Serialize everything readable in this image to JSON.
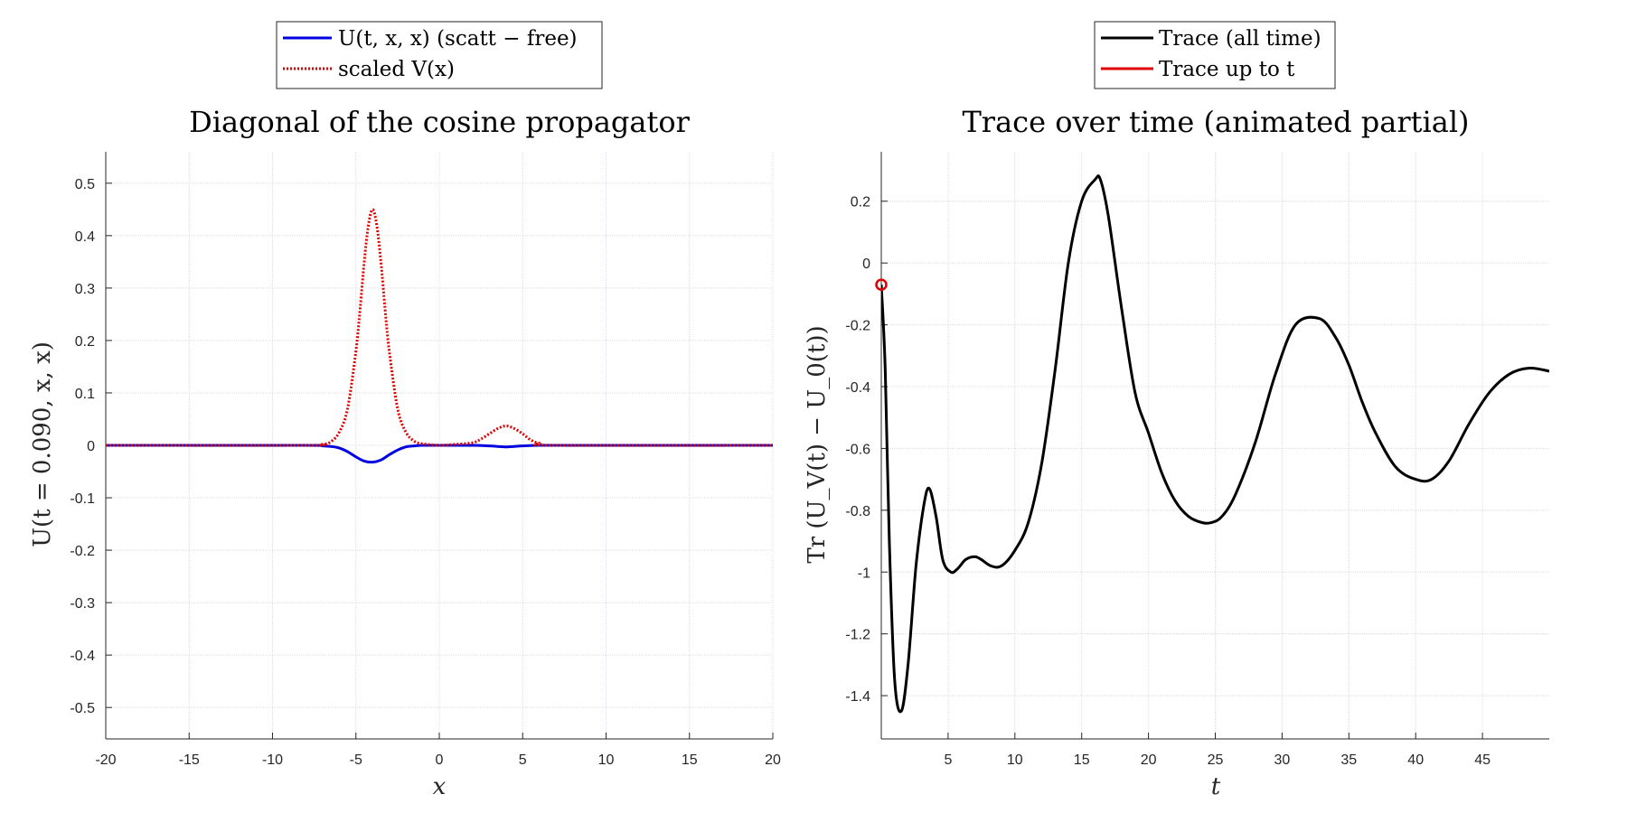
{
  "chart_data": [
    {
      "type": "line",
      "title": "Diagonal of the cosine propagator",
      "xlabel": "x",
      "ylabel": "U(t = 0.090, x, x)",
      "xlim": [
        -20,
        20
      ],
      "ylim": [
        -0.56,
        0.56
      ],
      "xticks": [
        -20,
        -15,
        -10,
        -5,
        0,
        5,
        10,
        15,
        20
      ],
      "yticks": [
        -0.5,
        -0.4,
        -0.3,
        -0.2,
        -0.1,
        0,
        0.1,
        0.2,
        0.3,
        0.4,
        0.5
      ],
      "grid": true,
      "legend_position": "top (outside, above title)",
      "series": [
        {
          "name": "U(t, x, x) (scatt − free)",
          "color": "#0000e0",
          "style": "solid",
          "x": [
            -20,
            -8,
            -7,
            -6.5,
            -6,
            -5.5,
            -5,
            -4.5,
            -4,
            -3.5,
            -3,
            -2.5,
            -2,
            -1.5,
            -1,
            0,
            2,
            3,
            3.5,
            4,
            4.5,
            5,
            6,
            8,
            20
          ],
          "y": [
            0,
            0,
            -0.001,
            -0.002,
            -0.005,
            -0.012,
            -0.022,
            -0.03,
            -0.032,
            -0.028,
            -0.018,
            -0.009,
            -0.003,
            -0.001,
            0,
            0,
            0,
            -0.001,
            -0.002,
            -0.003,
            -0.002,
            -0.001,
            0,
            0,
            0
          ]
        },
        {
          "name": "scaled V(x)",
          "color": "#e00000",
          "style": "dotted",
          "x": [
            -20,
            -8,
            -7,
            -6.5,
            -6,
            -5.5,
            -5,
            -4.75,
            -4.5,
            -4.25,
            -4,
            -3.75,
            -3.5,
            -3.25,
            -3,
            -2.5,
            -2,
            -1.5,
            -1,
            0,
            1,
            2,
            2.5,
            3,
            3.5,
            4,
            4.5,
            5,
            5.5,
            6,
            7,
            20
          ],
          "y": [
            0,
            0,
            0.002,
            0.007,
            0.025,
            0.07,
            0.18,
            0.26,
            0.35,
            0.42,
            0.45,
            0.42,
            0.35,
            0.26,
            0.18,
            0.07,
            0.025,
            0.008,
            0.003,
            0,
            0.002,
            0.005,
            0.012,
            0.022,
            0.032,
            0.037,
            0.032,
            0.022,
            0.01,
            0.004,
            0,
            0
          ]
        }
      ]
    },
    {
      "type": "line",
      "title": "Trace over time (animated partial)",
      "xlabel": "t",
      "ylabel": "Tr (U_V(t) − U_0(t))",
      "xlim": [
        0,
        50
      ],
      "ylim": [
        -1.54,
        0.36
      ],
      "xticks": [
        5,
        10,
        15,
        20,
        25,
        30,
        35,
        40,
        45
      ],
      "yticks": [
        -1.4,
        -1.2,
        -1,
        -0.8,
        -0.6,
        -0.4,
        -0.2,
        0,
        0.2
      ],
      "grid": true,
      "legend_position": "top (outside, above title)",
      "series": [
        {
          "name": "Trace (all time)",
          "color": "#000000",
          "style": "solid",
          "x": [
            0,
            0.3,
            0.6,
            1,
            1.5,
            2,
            2.6,
            3.2,
            3.6,
            4.1,
            4.6,
            5.2,
            5.7,
            6.3,
            7,
            7.5,
            8.2,
            9,
            10,
            11,
            12,
            13,
            14,
            15,
            16,
            16.4,
            17,
            18,
            19,
            20,
            21,
            22,
            23,
            24,
            24.7,
            25.5,
            26.5,
            28,
            29.5,
            31,
            32.8,
            34,
            35,
            36,
            37,
            38.5,
            40,
            41.2,
            42.5,
            44,
            45.5,
            47,
            48.5,
            50
          ],
          "y": [
            -0.07,
            -0.35,
            -0.9,
            -1.35,
            -1.45,
            -1.3,
            -0.98,
            -0.78,
            -0.73,
            -0.82,
            -0.96,
            -1.0,
            -0.99,
            -0.96,
            -0.95,
            -0.96,
            -0.98,
            -0.98,
            -0.93,
            -0.84,
            -0.65,
            -0.35,
            0.0,
            0.2,
            0.27,
            0.27,
            0.15,
            -0.15,
            -0.42,
            -0.55,
            -0.68,
            -0.77,
            -0.82,
            -0.84,
            -0.84,
            -0.82,
            -0.75,
            -0.58,
            -0.36,
            -0.2,
            -0.18,
            -0.24,
            -0.33,
            -0.45,
            -0.55,
            -0.66,
            -0.7,
            -0.7,
            -0.64,
            -0.52,
            -0.42,
            -0.36,
            -0.34,
            -0.35
          ]
        },
        {
          "name": "Trace up to t",
          "color": "#e00000",
          "style": "solid",
          "x": [
            0
          ],
          "y": [
            -0.07
          ]
        }
      ],
      "marker": {
        "x": 0,
        "y": -0.07,
        "color": "#e00000",
        "shape": "circle"
      }
    }
  ]
}
